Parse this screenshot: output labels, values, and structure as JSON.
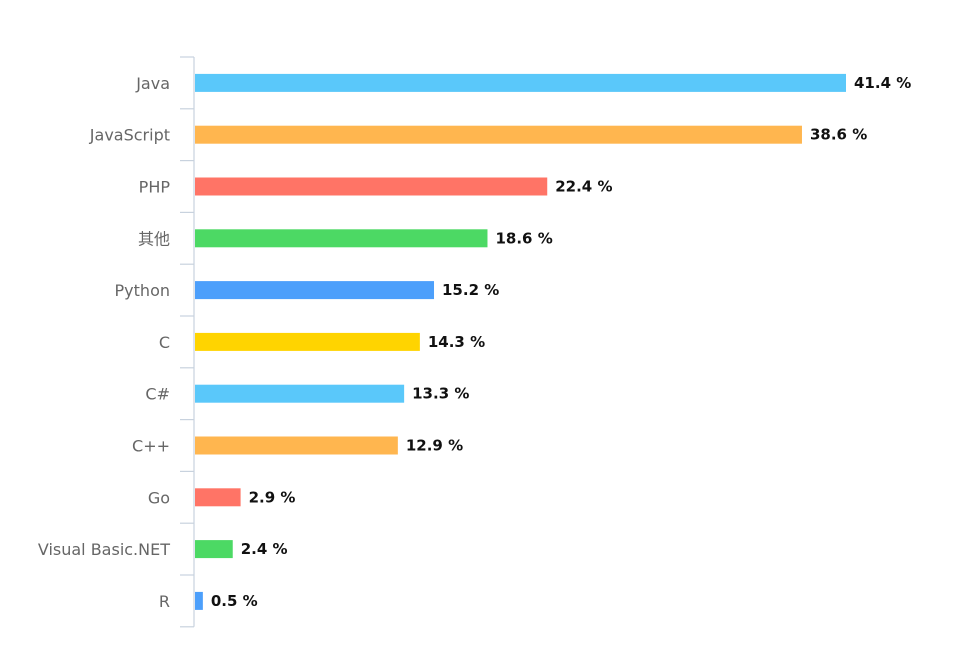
{
  "chart_data": {
    "type": "bar",
    "orientation": "horizontal",
    "categories": [
      "Java",
      "JavaScript",
      "PHP",
      "其他",
      "Python",
      "C",
      "C#",
      "C++",
      "Go",
      "Visual Basic.NET",
      "R"
    ],
    "values": [
      41.4,
      38.6,
      22.4,
      18.6,
      15.2,
      14.3,
      13.3,
      12.9,
      2.9,
      2.4,
      0.5
    ],
    "value_labels": [
      "41.4 %",
      "38.6 %",
      "22.4 %",
      "18.6 %",
      "15.2 %",
      "14.3 %",
      "13.3 %",
      "12.9 %",
      "2.9 %",
      "2.4 %",
      "0.5 %"
    ],
    "colors": [
      "#5ac8fa",
      "#ffb64f",
      "#ff7466",
      "#4cd964",
      "#4c9ffb",
      "#ffd400",
      "#5ac8fa",
      "#ffb64f",
      "#ff7466",
      "#4cd964",
      "#4c9ffb"
    ],
    "xlim": [
      0,
      41.4
    ],
    "grid": false,
    "title": "",
    "xlabel": "",
    "ylabel": ""
  }
}
